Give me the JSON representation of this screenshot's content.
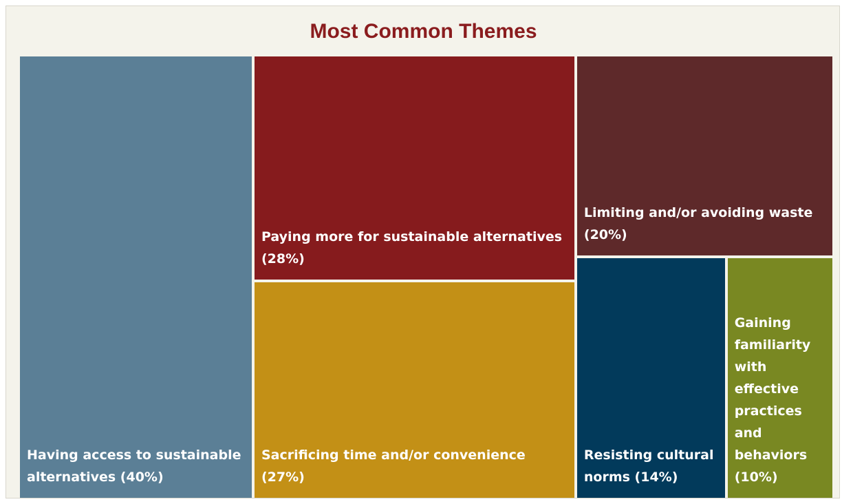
{
  "chart_data": {
    "type": "treemap",
    "title": "Most Common Themes",
    "unit": "%",
    "items": [
      {
        "label": "Having access to sustainable alternatives",
        "value": 40,
        "display": "Having access to sustainable alternatives (40%)",
        "color": "#5b7f96"
      },
      {
        "label": "Paying more for sustainable alternatives",
        "value": 28,
        "display": "Paying more for sustainable alternatives (28%)",
        "color": "#861b1d"
      },
      {
        "label": "Sacrificing time and/or convenience",
        "value": 27,
        "display": "Sacrificing time and/or convenience (27%)",
        "color": "#c39016"
      },
      {
        "label": "Limiting and/or avoiding waste",
        "value": 20,
        "display": "Limiting and/or avoiding waste (20%)",
        "color": "#5e292a"
      },
      {
        "label": "Resisting cultural norms",
        "value": 14,
        "display": "Resisting cultural norms (14%)",
        "color": "#023a5b"
      },
      {
        "label": "Gaining familiarity with effective practices and behaviors",
        "value": 10,
        "display": "Gaining familiarity with effective practices and behaviors (10%)",
        "color": "#798822"
      }
    ]
  }
}
